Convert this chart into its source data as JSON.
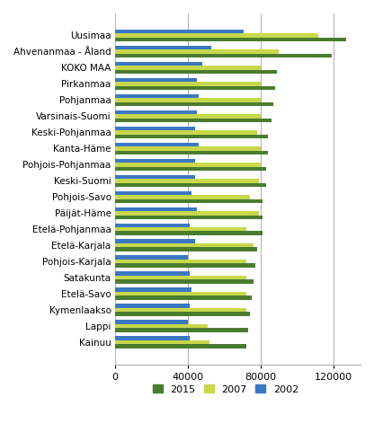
{
  "categories": [
    "Uusimaa",
    "Ahvenanmaa - Åland",
    "KOKO MAA",
    "Pirkanmaa",
    "Pohjanmaa",
    "Varsinais-Suomi",
    "Keski-Pohjanmaa",
    "Kanta-Häme",
    "Pohjois-Pohjanmaa",
    "Keski-Suomi",
    "Pohjois-Savo",
    "Päijät-Häme",
    "Etelä-Pohjanmaa",
    "Etelä-Karjala",
    "Pohjois-Karjala",
    "Satakunta",
    "Etelä-Savo",
    "Kymenlaakso",
    "Lappi",
    "Kainuu"
  ],
  "values_2015": [
    127000,
    119000,
    89000,
    88000,
    87000,
    86000,
    84000,
    84000,
    83000,
    83000,
    81000,
    81000,
    81000,
    78000,
    77000,
    76000,
    75000,
    74000,
    73000,
    72000
  ],
  "values_2007": [
    112000,
    90000,
    80000,
    80000,
    80000,
    80000,
    78000,
    80000,
    80000,
    79000,
    74000,
    79000,
    72000,
    76000,
    72000,
    72000,
    72000,
    72000,
    51000,
    52000
  ],
  "values_2002": [
    71000,
    53000,
    48000,
    45000,
    46000,
    45000,
    44000,
    46000,
    44000,
    44000,
    42000,
    45000,
    41000,
    44000,
    40000,
    41000,
    42000,
    41000,
    40000,
    41000
  ],
  "color_2015": "#4a7c2f",
  "color_2007": "#c8d84b",
  "color_2002": "#3b78c3",
  "xlim": [
    0,
    135000
  ],
  "xticks": [
    0,
    40000,
    80000,
    120000
  ],
  "legend_labels": [
    "2015",
    "2007",
    "2002"
  ],
  "bar_height": 0.25,
  "figure_bg": "#ffffff"
}
